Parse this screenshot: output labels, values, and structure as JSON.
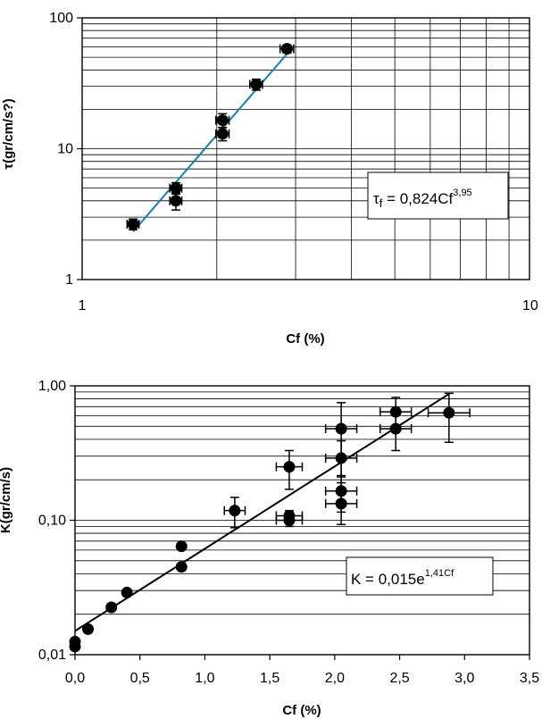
{
  "chart_data": [
    {
      "type": "scatter",
      "x_scale": "log",
      "y_scale": "log",
      "xlim": [
        1,
        10
      ],
      "ylim": [
        1,
        100
      ],
      "xlabel": "Cf (%)",
      "ylabel": "τ(gr/cm/s?)",
      "x_ticks": [
        "1",
        "10"
      ],
      "y_ticks": [
        "1",
        "10",
        "100"
      ],
      "grid": true,
      "colors": {
        "points": "#000000",
        "trend": "#1a7fa3"
      },
      "series": [
        {
          "points": [
            {
              "x": 1.3,
              "y": 2.65,
              "xerr": 0.04,
              "yerr": 0.25
            },
            {
              "x": 1.62,
              "y": 4.0,
              "xerr": 0.05,
              "yerr": 0.6
            },
            {
              "x": 1.62,
              "y": 5.0,
              "xerr": 0.05,
              "yerr": 0.5
            },
            {
              "x": 2.06,
              "y": 13.0,
              "xerr": 0.07,
              "yerr": 1.5
            },
            {
              "x": 2.06,
              "y": 16.5,
              "xerr": 0.07,
              "yerr": 2.0
            },
            {
              "x": 2.45,
              "y": 31.0,
              "xerr": 0.08,
              "yerr": 3.0
            },
            {
              "x": 2.87,
              "y": 58.0,
              "xerr": 0.1,
              "yerr": 4.0
            }
          ]
        }
      ],
      "trendline": {
        "x_from": 1.3,
        "x_to": 2.87,
        "a": 0.824,
        "b": 3.95
      },
      "equation": {
        "symbol": "τ",
        "subscript": "f",
        "body": " = 0,824Cf",
        "exponent": "3,95"
      }
    },
    {
      "type": "scatter",
      "x_scale": "linear",
      "y_scale": "log",
      "xlim": [
        0,
        3.5
      ],
      "ylim": [
        0.01,
        1
      ],
      "xlabel": "Cf (%)",
      "ylabel": "K(gr/cm/s)",
      "x_ticks": [
        "0,0",
        "0,5",
        "1,0",
        "1,5",
        "2,0",
        "2,5",
        "3,0",
        "3,5"
      ],
      "y_ticks": [
        "0,01",
        "0,10",
        "1,00"
      ],
      "grid": true,
      "colors": {
        "points": "#000000",
        "trend": "#000000"
      },
      "series": [
        {
          "points": [
            {
              "x": 0.0,
              "y": 0.0115,
              "xerr": 0,
              "yerr": 0
            },
            {
              "x": 0.0,
              "y": 0.0125,
              "xerr": 0,
              "yerr": 0
            },
            {
              "x": 0.1,
              "y": 0.0155,
              "xerr": 0,
              "yerr": 0
            },
            {
              "x": 0.28,
              "y": 0.0225,
              "xerr": 0,
              "yerr": 0
            },
            {
              "x": 0.4,
              "y": 0.029,
              "xerr": 0,
              "yerr": 0
            },
            {
              "x": 0.82,
              "y": 0.045,
              "xerr": 0,
              "yerr": 0
            },
            {
              "x": 0.82,
              "y": 0.064,
              "xerr": 0,
              "yerr": 0
            },
            {
              "x": 1.23,
              "y": 0.118,
              "xerr": 0.08,
              "yerr": 0.03
            },
            {
              "x": 1.65,
              "y": 0.1,
              "xerr": 0.1,
              "yerr": 0.01
            },
            {
              "x": 1.65,
              "y": 0.108,
              "xerr": 0.1,
              "yerr": 0.01
            },
            {
              "x": 1.65,
              "y": 0.25,
              "xerr": 0.1,
              "yerr": 0.08
            },
            {
              "x": 2.05,
              "y": 0.133,
              "xerr": 0.12,
              "yerr": 0.04
            },
            {
              "x": 2.05,
              "y": 0.165,
              "xerr": 0.12,
              "yerr": 0.05
            },
            {
              "x": 2.05,
              "y": 0.29,
              "xerr": 0.12,
              "yerr": 0.1
            },
            {
              "x": 2.05,
              "y": 0.48,
              "xerr": 0.12,
              "yerr": 0.27
            },
            {
              "x": 2.47,
              "y": 0.48,
              "xerr": 0.12,
              "yerr": 0.15
            },
            {
              "x": 2.47,
              "y": 0.64,
              "xerr": 0.12,
              "yerr": 0.18
            },
            {
              "x": 2.88,
              "y": 0.63,
              "xerr": 0.16,
              "yerr": 0.25
            }
          ]
        }
      ],
      "trendline": {
        "x_from": 0,
        "x_to": 2.88,
        "a": 0.015,
        "b": 1.41
      },
      "equation": {
        "body": "K = 0,015e",
        "exponent": "1,41Cf"
      }
    }
  ]
}
